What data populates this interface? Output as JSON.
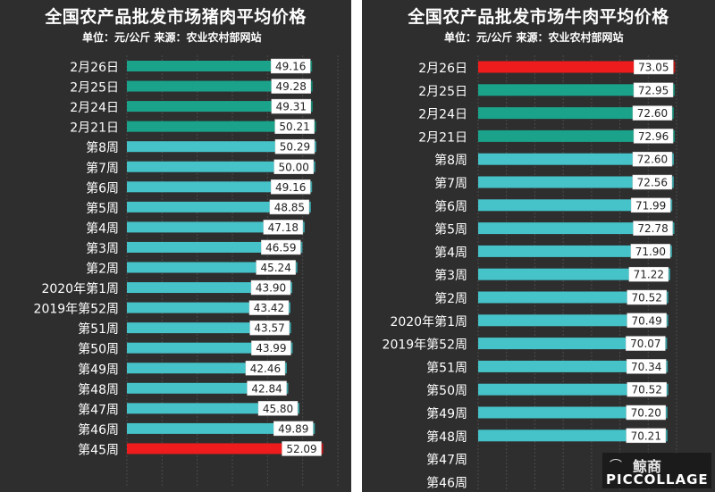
{
  "chart_data": [
    {
      "type": "bar",
      "orientation": "horizontal",
      "title": "全国农产品批发市场猪肉平均价格",
      "subtitle": "单位：元/公斤 来源：农业农村部网站",
      "categories": [
        "2月26日",
        "2月25日",
        "2月24日",
        "2月21日",
        "第8周",
        "第7周",
        "第6周",
        "第5周",
        "第4周",
        "第3周",
        "第2周",
        "2020年第1周",
        "2019年第52周",
        "第51周",
        "第50周",
        "第49周",
        "第48周",
        "第47周",
        "第46周",
        "第45周"
      ],
      "values": [
        49.16,
        49.28,
        49.31,
        50.21,
        50.29,
        50.0,
        49.16,
        48.85,
        47.18,
        46.59,
        45.24,
        43.9,
        43.42,
        43.57,
        43.99,
        42.46,
        42.84,
        45.8,
        49.89,
        52.09
      ],
      "value_labels": [
        "49.16",
        "49.28",
        "49.31",
        "50.21",
        "50.29",
        "50.00",
        "49.16",
        "48.85",
        "47.18",
        "46.59",
        "45.24",
        "43.90",
        "43.42",
        "43.57",
        "43.99",
        "42.46",
        "42.84",
        "45.80",
        "49.89",
        "52.09"
      ],
      "bar_colors": [
        "#1aa38a",
        "#1aa38a",
        "#1aa38a",
        "#1aa38a",
        "#45c3c8",
        "#45c3c8",
        "#45c3c8",
        "#45c3c8",
        "#45c3c8",
        "#45c3c8",
        "#45c3c8",
        "#45c3c8",
        "#45c3c8",
        "#45c3c8",
        "#45c3c8",
        "#45c3c8",
        "#45c3c8",
        "#45c3c8",
        "#45c3c8",
        "#ee1c1c"
      ],
      "xlim": [
        0,
        56
      ],
      "grid": true
    },
    {
      "type": "bar",
      "orientation": "horizontal",
      "title": "全国农产品批发市场牛肉平均价格",
      "subtitle": "单位：元/公斤 来源：农业农村部网站",
      "categories": [
        "2月26日",
        "2月25日",
        "2月24日",
        "2月21日",
        "第8周",
        "第7周",
        "第6周",
        "第5周",
        "第4周",
        "第3周",
        "第2周",
        "2020年第1周",
        "2019年第52周",
        "第51周",
        "第50周",
        "第49周",
        "第48周",
        "第47周",
        "第46周"
      ],
      "values": [
        73.05,
        72.95,
        72.6,
        72.96,
        72.6,
        72.56,
        71.99,
        72.78,
        71.9,
        71.22,
        70.52,
        70.49,
        70.07,
        70.34,
        70.52,
        70.2,
        70.21,
        null,
        null
      ],
      "value_labels": [
        "73.05",
        "72.95",
        "72.60",
        "72.96",
        "72.60",
        "72.56",
        "71.99",
        "72.78",
        "71.90",
        "71.22",
        "70.52",
        "70.49",
        "70.07",
        "70.34",
        "70.52",
        "70.20",
        "70.21",
        "",
        ""
      ],
      "bar_colors": [
        "#ee1c1c",
        "#1aa38a",
        "#1aa38a",
        "#1aa38a",
        "#45c3c8",
        "#45c3c8",
        "#45c3c8",
        "#45c3c8",
        "#45c3c8",
        "#45c3c8",
        "#45c3c8",
        "#45c3c8",
        "#45c3c8",
        "#45c3c8",
        "#45c3c8",
        "#45c3c8",
        "#45c3c8",
        "#45c3c8",
        "#45c3c8"
      ],
      "xlim": [
        0,
        73.6
      ],
      "grid": true
    }
  ],
  "watermark": {
    "brand_text": "鲸商",
    "collage_text": "PICCOLLAGE",
    "icon": "whale-logo-icon"
  },
  "colors": {
    "background": "#2e2e2e",
    "recent_days": "#1aa38a",
    "weekly": "#45c3c8",
    "highlight": "#ee1c1c",
    "label_box": "#ffffff"
  }
}
